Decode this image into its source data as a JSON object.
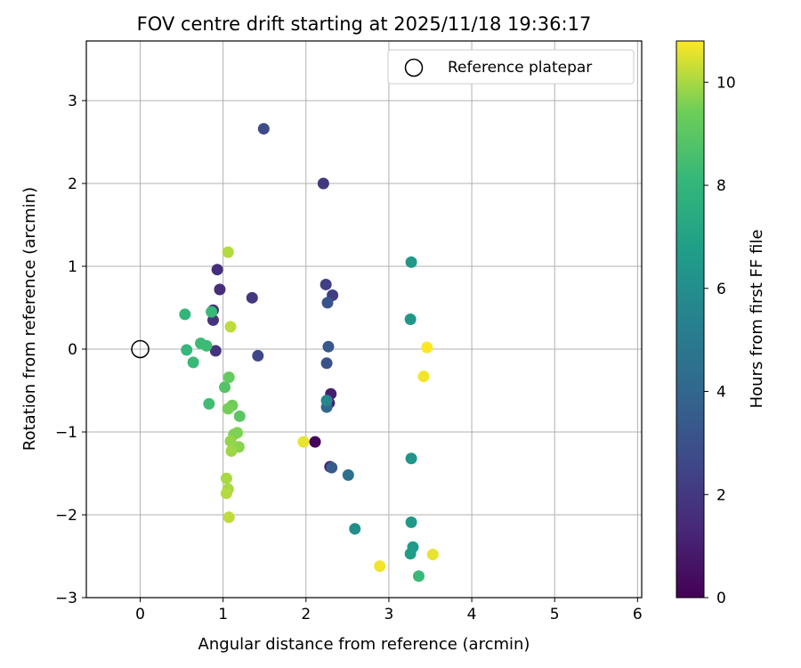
{
  "chart_data": {
    "type": "scatter",
    "title": "FOV centre drift starting at 2025/11/18 19:36:17",
    "xlabel": "Angular distance from reference (arcmin)",
    "ylabel": "Rotation from reference (arcmin)",
    "xlim": [
      -0.65,
      6.05
    ],
    "ylim": [
      -3.0,
      3.72
    ],
    "xticks": [
      "0",
      "1",
      "2",
      "3",
      "4",
      "5",
      "6"
    ],
    "yticks": [
      "−3",
      "−2",
      "−1",
      "0",
      "1",
      "2",
      "3"
    ],
    "grid": true,
    "legend": {
      "position": "top-right",
      "entries": [
        "Reference platepar"
      ]
    },
    "reference_point": {
      "x": 0.0,
      "y": 0.0,
      "label": "Reference platepar"
    },
    "colorbar": {
      "label": "Hours from first FF file",
      "range": [
        0,
        10.8
      ],
      "colormap": "viridis",
      "ticks": [
        "0",
        "2",
        "4",
        "6",
        "8",
        "10"
      ]
    },
    "points": [
      {
        "x": 2.11,
        "y": -1.12,
        "hours": 0.1
      },
      {
        "x": 2.29,
        "y": -1.42,
        "hours": 0.9
      },
      {
        "x": 2.3,
        "y": -0.54,
        "hours": 1.0
      },
      {
        "x": 2.28,
        "y": -0.65,
        "hours": 1.1
      },
      {
        "x": 0.93,
        "y": 0.96,
        "hours": 1.6
      },
      {
        "x": 0.96,
        "y": 0.72,
        "hours": 1.6
      },
      {
        "x": 0.88,
        "y": 0.47,
        "hours": 1.7
      },
      {
        "x": 0.88,
        "y": 0.35,
        "hours": 1.8
      },
      {
        "x": 0.91,
        "y": -0.02,
        "hours": 1.8
      },
      {
        "x": 1.35,
        "y": 0.62,
        "hours": 2.0
      },
      {
        "x": 2.21,
        "y": 2.0,
        "hours": 2.0
      },
      {
        "x": 2.32,
        "y": 0.65,
        "hours": 2.2
      },
      {
        "x": 2.24,
        "y": 0.78,
        "hours": 2.3
      },
      {
        "x": 1.42,
        "y": -0.08,
        "hours": 2.6
      },
      {
        "x": 1.49,
        "y": 2.66,
        "hours": 2.8
      },
      {
        "x": 2.25,
        "y": -0.17,
        "hours": 3.0
      },
      {
        "x": 2.26,
        "y": 0.56,
        "hours": 3.1
      },
      {
        "x": 2.27,
        "y": 0.03,
        "hours": 3.3
      },
      {
        "x": 2.31,
        "y": -1.43,
        "hours": 3.5
      },
      {
        "x": 2.25,
        "y": -0.7,
        "hours": 4.0
      },
      {
        "x": 2.51,
        "y": -1.52,
        "hours": 4.4
      },
      {
        "x": 2.25,
        "y": -0.62,
        "hours": 5.6
      },
      {
        "x": 2.59,
        "y": -2.17,
        "hours": 6.0
      },
      {
        "x": 3.27,
        "y": -1.32,
        "hours": 6.3
      },
      {
        "x": 3.27,
        "y": 1.05,
        "hours": 6.4
      },
      {
        "x": 3.26,
        "y": 0.36,
        "hours": 6.4
      },
      {
        "x": 3.27,
        "y": -2.09,
        "hours": 6.5
      },
      {
        "x": 3.29,
        "y": -2.39,
        "hours": 6.6
      },
      {
        "x": 3.26,
        "y": -2.47,
        "hours": 6.7
      },
      {
        "x": 3.36,
        "y": -2.74,
        "hours": 8.2
      },
      {
        "x": 0.54,
        "y": 0.42,
        "hours": 8.0
      },
      {
        "x": 0.56,
        "y": -0.01,
        "hours": 8.1
      },
      {
        "x": 0.64,
        "y": -0.16,
        "hours": 8.2
      },
      {
        "x": 0.73,
        "y": 0.07,
        "hours": 8.3
      },
      {
        "x": 0.8,
        "y": 0.04,
        "hours": 8.3
      },
      {
        "x": 0.86,
        "y": 0.45,
        "hours": 8.2
      },
      {
        "x": 0.83,
        "y": -0.66,
        "hours": 8.4
      },
      {
        "x": 1.02,
        "y": -0.46,
        "hours": 8.8
      },
      {
        "x": 1.2,
        "y": -0.81,
        "hours": 9.0
      },
      {
        "x": 1.07,
        "y": -0.34,
        "hours": 9.2
      },
      {
        "x": 1.11,
        "y": -0.68,
        "hours": 9.4
      },
      {
        "x": 1.06,
        "y": -0.72,
        "hours": 9.5
      },
      {
        "x": 1.13,
        "y": -1.03,
        "hours": 9.6
      },
      {
        "x": 1.17,
        "y": -1.01,
        "hours": 9.6
      },
      {
        "x": 1.19,
        "y": -1.18,
        "hours": 9.7
      },
      {
        "x": 1.09,
        "y": -1.11,
        "hours": 9.8
      },
      {
        "x": 1.1,
        "y": -1.23,
        "hours": 9.9
      },
      {
        "x": 1.04,
        "y": -1.56,
        "hours": 10.0
      },
      {
        "x": 1.06,
        "y": -1.69,
        "hours": 10.0
      },
      {
        "x": 1.04,
        "y": -1.74,
        "hours": 10.1
      },
      {
        "x": 1.07,
        "y": -2.03,
        "hours": 10.2
      },
      {
        "x": 1.06,
        "y": 1.17,
        "hours": 10.1
      },
      {
        "x": 1.09,
        "y": 0.27,
        "hours": 10.2
      },
      {
        "x": 1.97,
        "y": -1.12,
        "hours": 10.6
      },
      {
        "x": 2.89,
        "y": -2.62,
        "hours": 10.7
      },
      {
        "x": 3.46,
        "y": 0.02,
        "hours": 10.8
      },
      {
        "x": 3.42,
        "y": -0.33,
        "hours": 10.7
      },
      {
        "x": 3.53,
        "y": -2.48,
        "hours": 10.6
      }
    ]
  }
}
